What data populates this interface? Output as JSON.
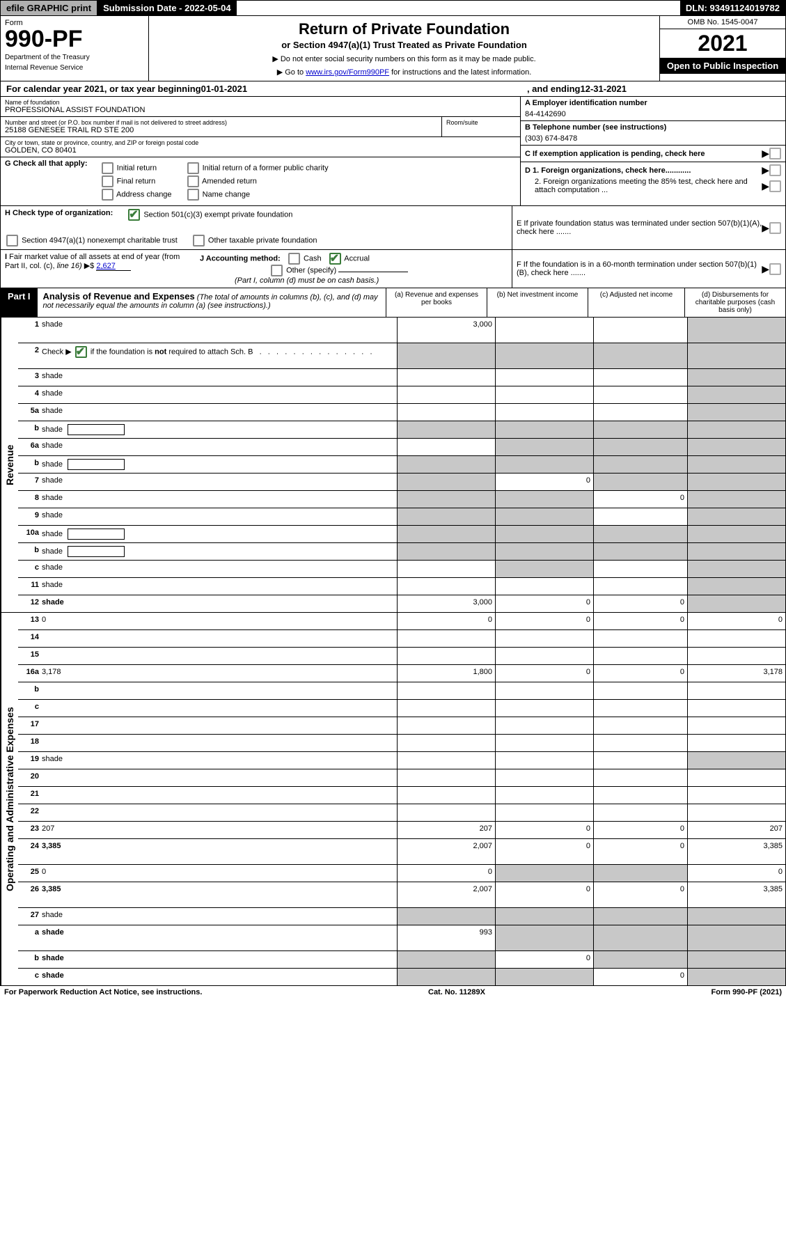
{
  "topbar": {
    "efile": "efile GRAPHIC print",
    "sub_label": "Submission Date - 2022-05-04",
    "dln": "DLN: 93491124019782"
  },
  "header": {
    "form_word": "Form",
    "form_num": "990-PF",
    "dept": "Department of the Treasury",
    "irs": "Internal Revenue Service",
    "title": "Return of Private Foundation",
    "subtitle": "or Section 4947(a)(1) Trust Treated as Private Foundation",
    "instr1": "▶ Do not enter social security numbers on this form as it may be made public.",
    "instr2_pre": "▶ Go to ",
    "instr2_link": "www.irs.gov/Form990PF",
    "instr2_post": " for instructions and the latest information.",
    "omb": "OMB No. 1545-0047",
    "year": "2021",
    "open": "Open to Public Inspection"
  },
  "calendar": {
    "pre": "For calendar year 2021, or tax year beginning ",
    "begin": "01-01-2021",
    "mid": ", and ending ",
    "end": "12-31-2021"
  },
  "entity": {
    "name_label": "Name of foundation",
    "name": "PROFESSIONAL ASSIST FOUNDATION",
    "addr_label": "Number and street (or P.O. box number if mail is not delivered to street address)",
    "addr": "25188 GENESEE TRAIL RD STE 200",
    "room_label": "Room/suite",
    "city_label": "City or town, state or province, country, and ZIP or foreign postal code",
    "city": "GOLDEN, CO  80401",
    "a_label": "A Employer identification number",
    "a_val": "84-4142690",
    "b_label": "B Telephone number (see instructions)",
    "b_val": "(303) 674-8478",
    "c_label": "C If exemption application is pending, check here",
    "d1": "D 1. Foreign organizations, check here............",
    "d2": "2. Foreign organizations meeting the 85% test, check here and attach computation ...",
    "e": "E  If private foundation status was terminated under section 507(b)(1)(A), check here .......",
    "f": "F  If the foundation is in a 60-month termination under section 507(b)(1)(B), check here .......",
    "g_label": "G Check all that apply:",
    "g_opts": [
      "Initial return",
      "Initial return of a former public charity",
      "Final return",
      "Amended return",
      "Address change",
      "Name change"
    ],
    "h_label": "H Check type of organization:",
    "h_opts": [
      "Section 501(c)(3) exempt private foundation",
      "Section 4947(a)(1) nonexempt charitable trust",
      "Other taxable private foundation"
    ],
    "i_label": "I Fair market value of all assets at end of year (from Part II, col. (c), line 16) ▶$",
    "i_val": "2,627",
    "j_label": "J Accounting method:",
    "j_opts": [
      "Cash",
      "Accrual",
      "Other (specify)"
    ],
    "j_note": "(Part I, column (d) must be on cash basis.)"
  },
  "part1": {
    "label": "Part I",
    "title": "Analysis of Revenue and Expenses",
    "note": " (The total of amounts in columns (b), (c), and (d) may not necessarily equal the amounts in column (a) (see instructions).)",
    "cols": {
      "a": "(a)   Revenue and expenses per books",
      "b": "(b)  Net investment income",
      "c": "(c)  Adjusted net income",
      "d": "(d)  Disbursements for charitable purposes (cash basis only)"
    }
  },
  "side_labels": {
    "rev": "Revenue",
    "exp": "Operating and Administrative Expenses"
  },
  "rows": [
    {
      "n": "1",
      "d": "shade",
      "a": "3,000",
      "b": "",
      "c": "",
      "tall": true
    },
    {
      "n": "2",
      "d": "shade",
      "a": "shade",
      "b": "shade",
      "c": "shade",
      "tall": true,
      "check": true
    },
    {
      "n": "3",
      "d": "shade",
      "a": "",
      "b": "",
      "c": ""
    },
    {
      "n": "4",
      "d": "shade",
      "a": "",
      "b": "",
      "c": ""
    },
    {
      "n": "5a",
      "d": "shade",
      "a": "",
      "b": "",
      "c": ""
    },
    {
      "n": "b",
      "d": "shade",
      "a": "shade",
      "b": "shade",
      "c": "shade",
      "inline": true
    },
    {
      "n": "6a",
      "d": "shade",
      "a": "",
      "b": "shade",
      "c": "shade"
    },
    {
      "n": "b",
      "d": "shade",
      "a": "shade",
      "b": "shade",
      "c": "shade",
      "inline": true
    },
    {
      "n": "7",
      "d": "shade",
      "a": "shade",
      "b": "0",
      "c": "shade"
    },
    {
      "n": "8",
      "d": "shade",
      "a": "shade",
      "b": "shade",
      "c": "0"
    },
    {
      "n": "9",
      "d": "shade",
      "a": "shade",
      "b": "shade",
      "c": ""
    },
    {
      "n": "10a",
      "d": "shade",
      "a": "shade",
      "b": "shade",
      "c": "shade",
      "inline": true
    },
    {
      "n": "b",
      "d": "shade",
      "a": "shade",
      "b": "shade",
      "c": "shade",
      "inline": true
    },
    {
      "n": "c",
      "d": "shade",
      "a": "",
      "b": "shade",
      "c": ""
    },
    {
      "n": "11",
      "d": "shade",
      "a": "",
      "b": "",
      "c": ""
    },
    {
      "n": "12",
      "d": "shade",
      "a": "3,000",
      "b": "0",
      "c": "0",
      "bold": true
    }
  ],
  "exp_rows": [
    {
      "n": "13",
      "d": "0",
      "a": "0",
      "b": "0",
      "c": "0"
    },
    {
      "n": "14",
      "d": "",
      "a": "",
      "b": "",
      "c": ""
    },
    {
      "n": "15",
      "d": "",
      "a": "",
      "b": "",
      "c": ""
    },
    {
      "n": "16a",
      "d": "3,178",
      "a": "1,800",
      "b": "0",
      "c": "0"
    },
    {
      "n": "b",
      "d": "",
      "a": "",
      "b": "",
      "c": ""
    },
    {
      "n": "c",
      "d": "",
      "a": "",
      "b": "",
      "c": ""
    },
    {
      "n": "17",
      "d": "",
      "a": "",
      "b": "",
      "c": ""
    },
    {
      "n": "18",
      "d": "",
      "a": "",
      "b": "",
      "c": ""
    },
    {
      "n": "19",
      "d": "shade",
      "a": "",
      "b": "",
      "c": ""
    },
    {
      "n": "20",
      "d": "",
      "a": "",
      "b": "",
      "c": ""
    },
    {
      "n": "21",
      "d": "",
      "a": "",
      "b": "",
      "c": ""
    },
    {
      "n": "22",
      "d": "",
      "a": "",
      "b": "",
      "c": ""
    },
    {
      "n": "23",
      "d": "207",
      "a": "207",
      "b": "0",
      "c": "0"
    },
    {
      "n": "24",
      "d": "3,385",
      "a": "2,007",
      "b": "0",
      "c": "0",
      "bold": true,
      "tall": true
    },
    {
      "n": "25",
      "d": "0",
      "a": "0",
      "b": "shade",
      "c": "shade"
    },
    {
      "n": "26",
      "d": "3,385",
      "a": "2,007",
      "b": "0",
      "c": "0",
      "bold": true,
      "tall": true
    },
    {
      "n": "27",
      "d": "shade",
      "a": "shade",
      "b": "shade",
      "c": "shade"
    },
    {
      "n": "a",
      "d": "shade",
      "a": "993",
      "b": "shade",
      "c": "shade",
      "bold": true,
      "tall": true
    },
    {
      "n": "b",
      "d": "shade",
      "a": "shade",
      "b": "0",
      "c": "shade",
      "bold": true
    },
    {
      "n": "c",
      "d": "shade",
      "a": "shade",
      "b": "shade",
      "c": "0",
      "bold": true
    }
  ],
  "footer": {
    "left": "For Paperwork Reduction Act Notice, see instructions.",
    "mid": "Cat. No. 11289X",
    "right": "Form 990-PF (2021)"
  }
}
